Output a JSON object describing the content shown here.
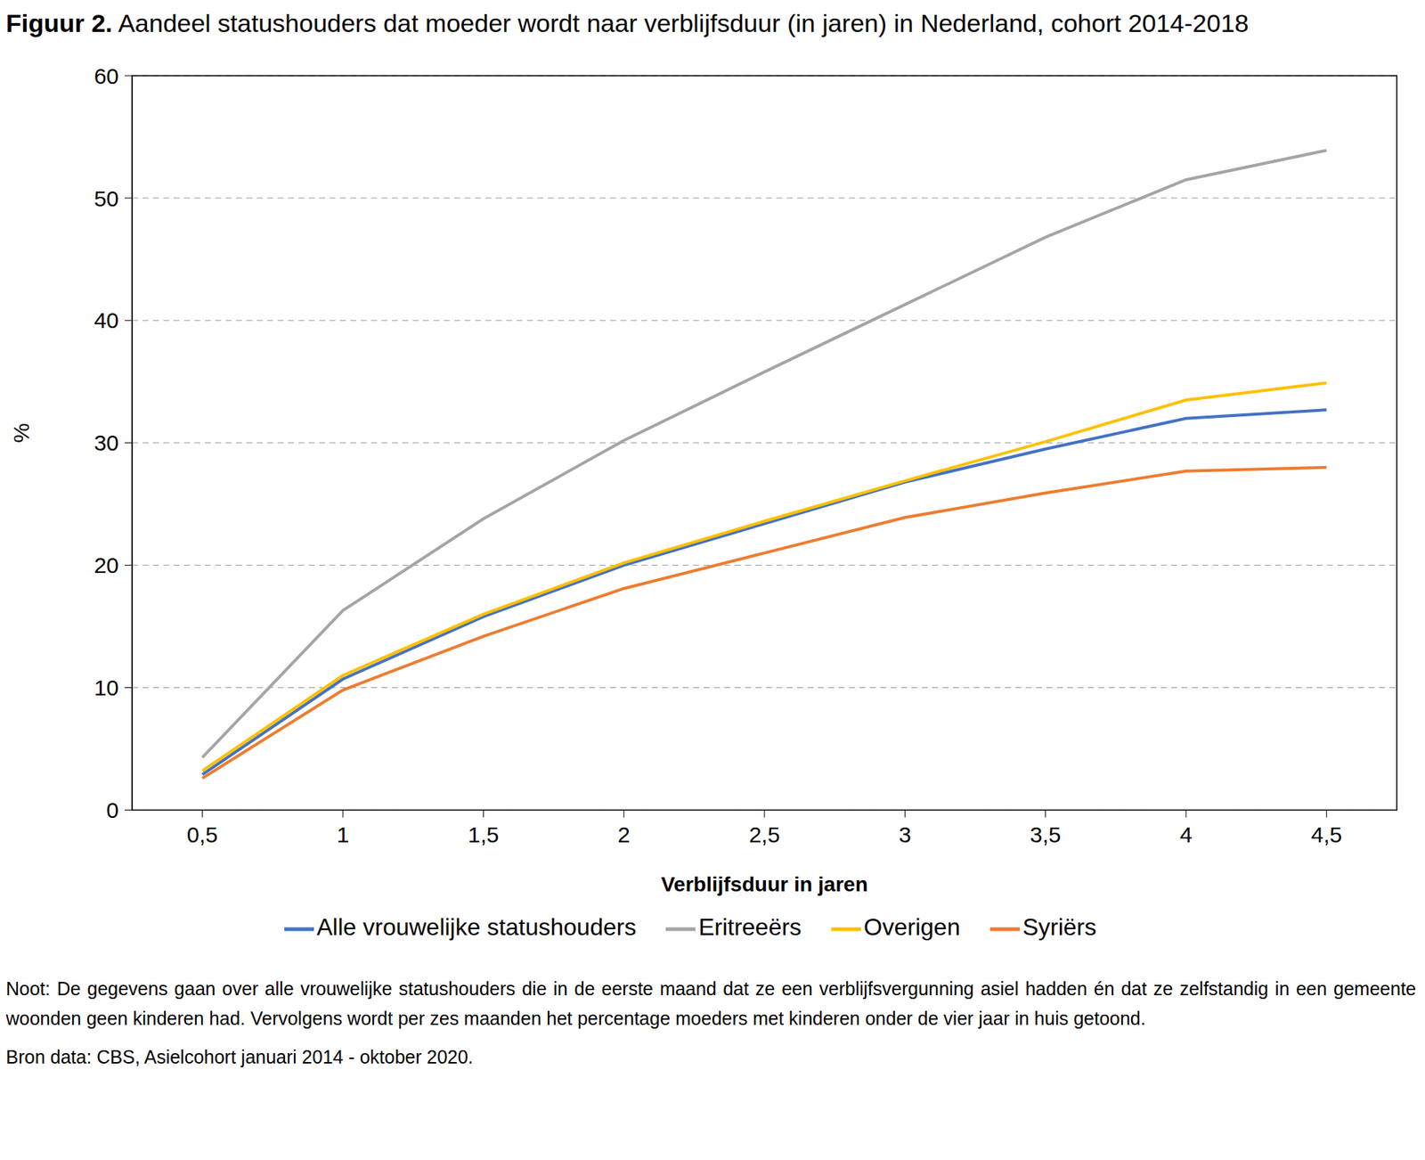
{
  "chart_data": {
    "type": "line",
    "title": "Figuur 2. Aandeel statushouders dat moeder wordt naar verblijfsduur (in jaren) in Nederland, cohort 2014-2018",
    "x_label": "Verblijfsduur in jaren",
    "y_label": "%",
    "x": [
      0.5,
      1,
      1.5,
      2,
      2.5,
      3,
      3.5,
      4,
      4.5
    ],
    "series": [
      {
        "name": "Alle vrouwelijke statushouders",
        "color": "#4472c4",
        "values": [
          2.9,
          10.7,
          15.8,
          20.0,
          23.4,
          26.8,
          29.5,
          32.0,
          32.7
        ]
      },
      {
        "name": "Syriërs",
        "color": "#ed7d31",
        "values": [
          2.6,
          9.8,
          14.2,
          18.1,
          21.0,
          23.9,
          25.9,
          27.7,
          28.0
        ]
      },
      {
        "name": "Eritreeërs",
        "color": "#a5a5a5",
        "values": [
          4.3,
          16.3,
          23.8,
          30.2,
          35.8,
          41.3,
          46.8,
          51.5,
          53.9
        ]
      },
      {
        "name": "Overigen",
        "color": "#ffc000",
        "values": [
          3.2,
          11.0,
          16.0,
          20.2,
          23.6,
          26.9,
          30.1,
          33.5,
          34.9
        ]
      }
    ],
    "xlim": [
      0.25,
      4.75
    ],
    "xticks": [
      {
        "value": 0.5,
        "label": "0,5"
      },
      {
        "value": 1,
        "label": "1"
      },
      {
        "value": 1.5,
        "label": "1,5"
      },
      {
        "value": 2,
        "label": "2"
      },
      {
        "value": 2.5,
        "label": "2,5"
      },
      {
        "value": 3,
        "label": "3"
      },
      {
        "value": 3.5,
        "label": "3,5"
      },
      {
        "value": 4,
        "label": "4"
      },
      {
        "value": 4.5,
        "label": "4,5"
      }
    ],
    "ylim": [
      0,
      60
    ],
    "yticks": [
      0,
      10,
      20,
      30,
      40,
      50,
      60
    ],
    "grid": true,
    "legend": "bottom",
    "note": "Noot: De gegevens gaan over alle vrouwelijke statushouders die in de eerste maand dat ze een verblijfsvergunning asiel hadden én dat ze zelfstandig in een gemeente woonden geen kinderen had. Vervolgens wordt per zes maanden het percentage moeders met kinderen onder de vier jaar in huis getoond.",
    "source": "Bron data: CBS, Asielcohort januari 2014 - oktober 2020."
  }
}
